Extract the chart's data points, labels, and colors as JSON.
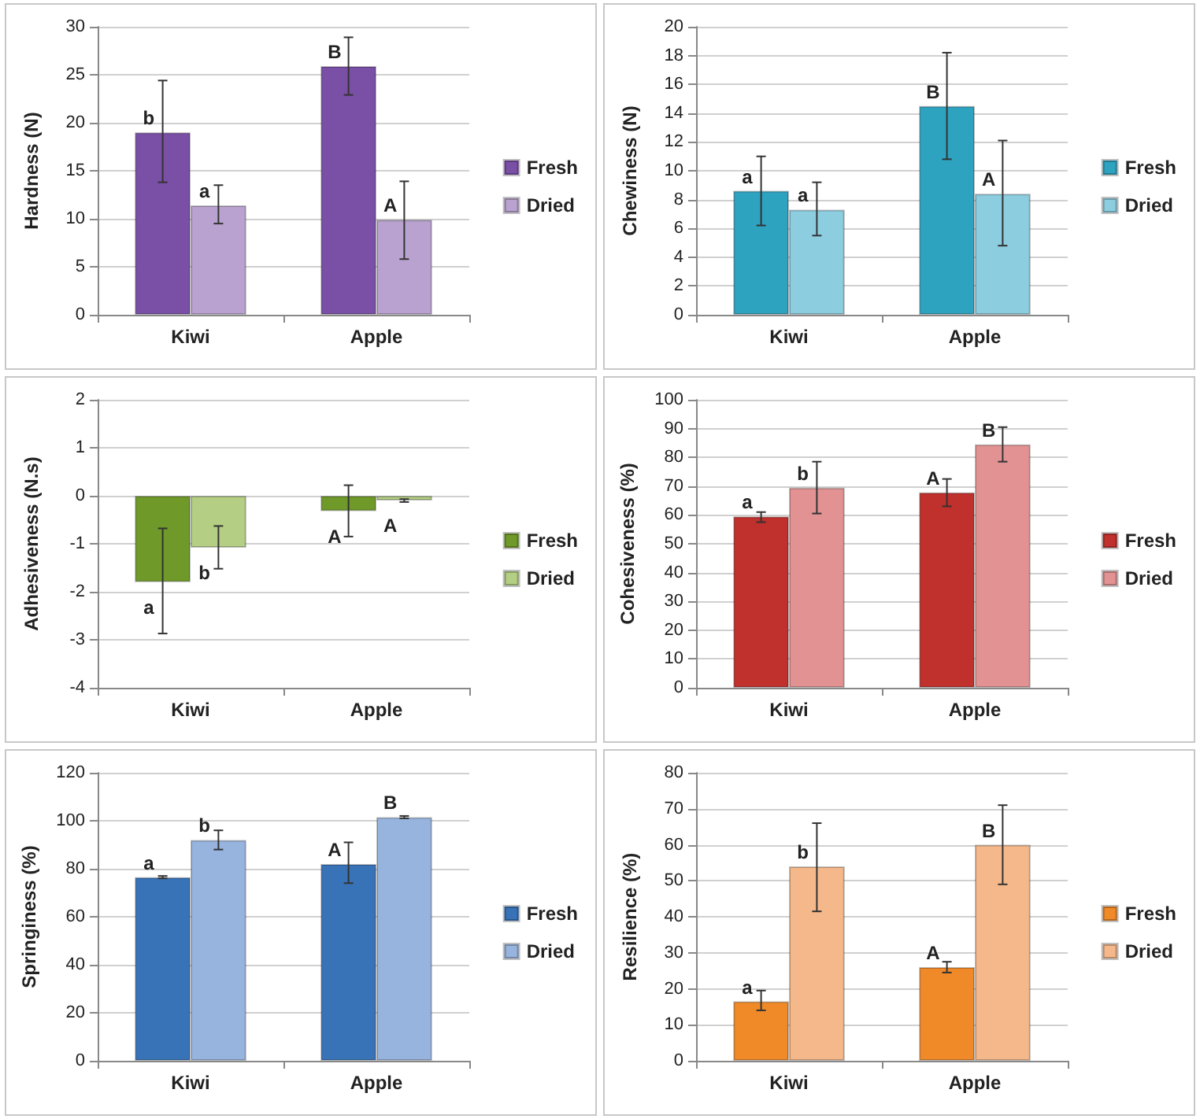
{
  "chart_data": [
    {
      "type": "bar",
      "ylabel": "Hardness (N)",
      "categories": [
        "Kiwi",
        "Apple"
      ],
      "ylim": [
        0,
        30
      ],
      "yticks": [
        0,
        5,
        10,
        15,
        20,
        25,
        30
      ],
      "grid": "y",
      "legend": "right",
      "series": [
        {
          "name": "Fresh",
          "color": "#7a4fa6",
          "values": [
            19,
            25.9
          ],
          "errors": [
            [
              13.8,
              24.4
            ],
            [
              22.9,
              28.9
            ]
          ]
        },
        {
          "name": "Dried",
          "color": "#b9a2cf",
          "values": [
            11.4,
            9.9
          ],
          "errors": [
            [
              9.5,
              13.5
            ],
            [
              5.8,
              13.9
            ]
          ]
        }
      ],
      "annotations": [
        {
          "text": "b",
          "x": "Kiwi",
          "y": 19
        },
        {
          "text": "a",
          "x": "Kiwi",
          "y": 11.4
        },
        {
          "text": "B",
          "x": "Apple",
          "y": 25.9
        },
        {
          "text": "A",
          "x": "Apple",
          "y": 9.9
        }
      ]
    },
    {
      "type": "bar",
      "ylabel": "Chewiness (N)",
      "categories": [
        "Kiwi",
        "Apple"
      ],
      "ylim": [
        0,
        20
      ],
      "yticks": [
        0,
        2,
        4,
        6,
        8,
        10,
        12,
        14,
        16,
        18,
        20
      ],
      "grid": "y",
      "legend": "right",
      "series": [
        {
          "name": "Fresh",
          "color": "#2ea3c0",
          "values": [
            8.6,
            14.5
          ],
          "errors": [
            [
              6.2,
              11.0
            ],
            [
              10.8,
              18.2
            ]
          ]
        },
        {
          "name": "Dried",
          "color": "#8ccde0",
          "values": [
            7.3,
            8.4
          ],
          "errors": [
            [
              5.5,
              9.2
            ],
            [
              4.8,
              12.1
            ]
          ]
        }
      ],
      "annotations": [
        {
          "text": "a",
          "x": "Kiwi",
          "y": 8.6
        },
        {
          "text": "a",
          "x": "Kiwi",
          "y": 7.3
        },
        {
          "text": "B",
          "x": "Apple",
          "y": 14.5
        },
        {
          "text": "A",
          "x": "Apple",
          "y": 8.4
        }
      ]
    },
    {
      "type": "bar",
      "ylabel": "Adhesiveness (N.s)",
      "categories": [
        "Kiwi",
        "Apple"
      ],
      "ylim": [
        -4,
        2
      ],
      "yticks": [
        -4,
        -3,
        -2,
        -1,
        0,
        1,
        2
      ],
      "grid": "y",
      "legend": "right",
      "series": [
        {
          "name": "Fresh",
          "color": "#6f9a2a",
          "values": [
            -1.8,
            -0.32
          ],
          "errors": [
            [
              -2.87,
              -0.68
            ],
            [
              -0.85,
              0.22
            ]
          ]
        },
        {
          "name": "Dried",
          "color": "#b4cf84",
          "values": [
            -1.08,
            -0.1
          ],
          "errors": [
            [
              -1.52,
              -0.63
            ],
            [
              -0.13,
              -0.07
            ]
          ]
        }
      ],
      "annotations": [
        {
          "text": "a",
          "x": "Kiwi",
          "y": -1.8
        },
        {
          "text": "b",
          "x": "Kiwi",
          "y": -1.08
        },
        {
          "text": "A",
          "x": "Apple",
          "y": -0.32
        },
        {
          "text": "A",
          "x": "Apple",
          "y": -0.1
        }
      ]
    },
    {
      "type": "bar",
      "ylabel": "Cohesiveness (%)",
      "categories": [
        "Kiwi",
        "Apple"
      ],
      "ylim": [
        0,
        100
      ],
      "yticks": [
        0,
        10,
        20,
        30,
        40,
        50,
        60,
        70,
        80,
        90,
        100
      ],
      "grid": "y",
      "legend": "right",
      "series": [
        {
          "name": "Fresh",
          "color": "#c0302c",
          "values": [
            59.5,
            67.8
          ],
          "errors": [
            [
              57.5,
              61
            ],
            [
              63,
              72.5
            ]
          ]
        },
        {
          "name": "Dried",
          "color": "#e29292",
          "values": [
            69.5,
            84.5
          ],
          "errors": [
            [
              60.5,
              78.5
            ],
            [
              78.5,
              90.5
            ]
          ]
        }
      ],
      "annotations": [
        {
          "text": "a",
          "x": "Kiwi",
          "y": 59.5
        },
        {
          "text": "b",
          "x": "Kiwi",
          "y": 69.5
        },
        {
          "text": "A",
          "x": "Apple",
          "y": 67.8
        },
        {
          "text": "B",
          "x": "Apple",
          "y": 84.5
        }
      ]
    },
    {
      "type": "bar",
      "ylabel": "Springiness (%)",
      "categories": [
        "Kiwi",
        "Apple"
      ],
      "ylim": [
        0,
        120
      ],
      "yticks": [
        0,
        20,
        40,
        60,
        80,
        100,
        120
      ],
      "grid": "y",
      "legend": "right",
      "series": [
        {
          "name": "Fresh",
          "color": "#3873b8",
          "values": [
            76.5,
            82
          ],
          "errors": [
            0.5,
            [
              74,
              91
            ]
          ]
        },
        {
          "name": "Dried",
          "color": "#97b4de",
          "values": [
            92,
            101.5
          ],
          "errors": [
            [
              88,
              96
            ],
            0.5
          ]
        }
      ],
      "annotations": [
        {
          "text": "a",
          "x": "Kiwi",
          "y": 76.5
        },
        {
          "text": "b",
          "x": "Kiwi",
          "y": 92
        },
        {
          "text": "A",
          "x": "Apple",
          "y": 82
        },
        {
          "text": "B",
          "x": "Apple",
          "y": 101.5
        }
      ]
    },
    {
      "type": "bar",
      "ylabel": "Resilience (%)",
      "categories": [
        "Kiwi",
        "Apple"
      ],
      "ylim": [
        0,
        80
      ],
      "yticks": [
        0,
        10,
        20,
        30,
        40,
        50,
        60,
        70,
        80
      ],
      "grid": "y",
      "legend": "right",
      "series": [
        {
          "name": "Fresh",
          "color": "#f08a28",
          "values": [
            16.5,
            26
          ],
          "errors": [
            [
              14,
              19.5
            ],
            [
              24.5,
              27.5
            ]
          ]
        },
        {
          "name": "Dried",
          "color": "#f5b88a",
          "values": [
            54,
            60
          ],
          "errors": [
            [
              41.5,
              66
            ],
            [
              49,
              71
            ]
          ]
        }
      ],
      "annotations": [
        {
          "text": "a",
          "x": "Kiwi",
          "y": 16.5
        },
        {
          "text": "b",
          "x": "Kiwi",
          "y": 54
        },
        {
          "text": "A",
          "x": "Apple",
          "y": 26
        },
        {
          "text": "B",
          "x": "Apple",
          "y": 60
        }
      ]
    }
  ]
}
